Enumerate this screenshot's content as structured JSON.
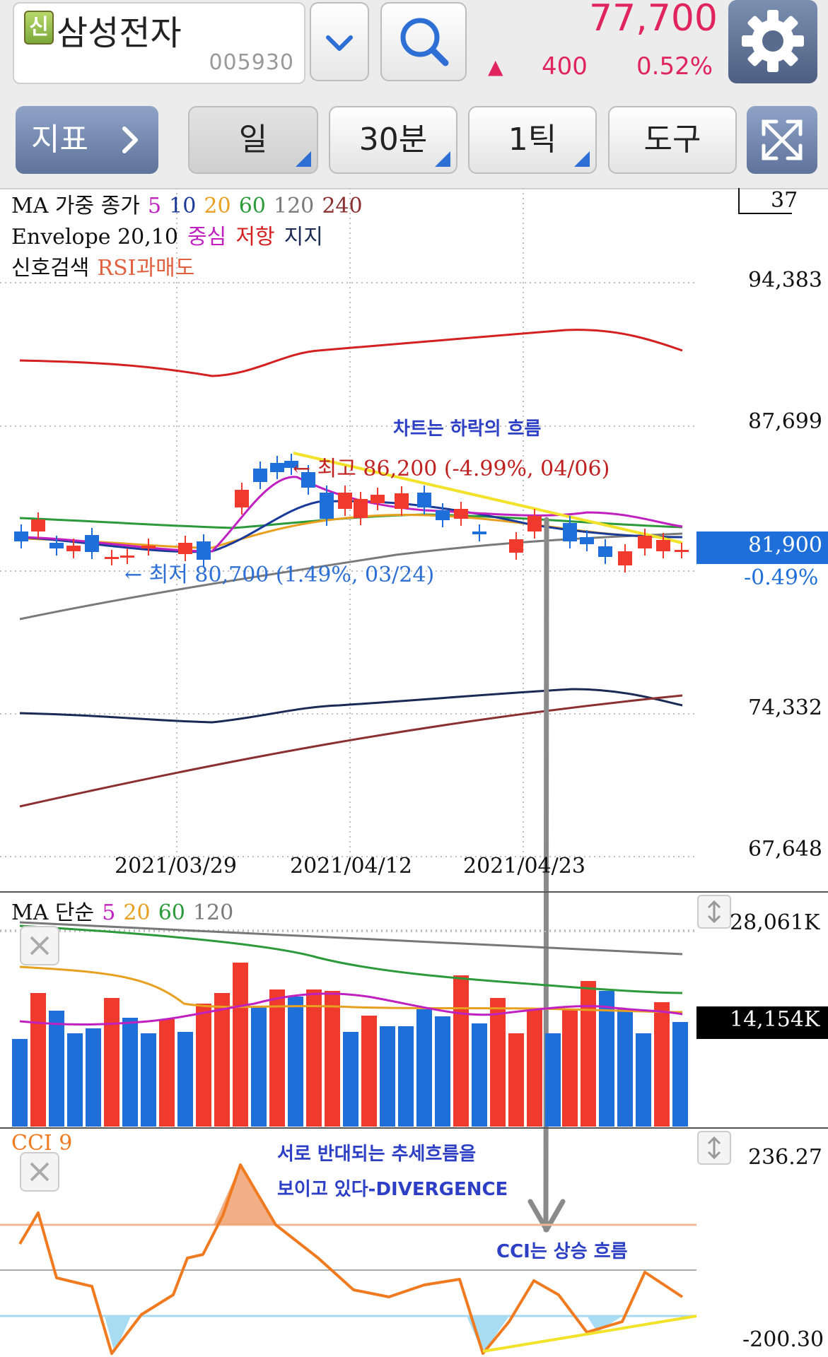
{
  "header": {
    "badge": "신",
    "stock_name": "삼성전자",
    "stock_code": "005930",
    "price": "77,700",
    "change_arrow": "▲",
    "change": "400",
    "change_pct": "0.52%",
    "price_color": "#e0245e"
  },
  "toolbar": {
    "indicator_label": "지표",
    "period_day": "일",
    "period_30m": "30분",
    "period_tick": "1틱",
    "tools": "도구"
  },
  "legend": {
    "ma_title": "MA 가중 종가",
    "ma_periods": [
      "5",
      "10",
      "20",
      "60",
      "120",
      "240"
    ],
    "envelope_title": "Envelope 20,10",
    "env_center": "중심",
    "env_resist": "저항",
    "env_support": "지지",
    "signal_title": "신호검색",
    "signal_rsi": "RSI과매도",
    "box_value": "37"
  },
  "price_axis": {
    "labels": [
      "94,383",
      "87,699",
      "74,332",
      "67,648"
    ],
    "current": "81,900",
    "current_pct": "-0.49%"
  },
  "annotations": {
    "trend_note": "차트는 하락의 흐름",
    "high_label": "← 최고 86,200 (-4.99%, 04/06)",
    "low_label": "← 최저 80,700 (1.49%, 03/24)",
    "divergence_1": "서로 반대되는 추세흐름을",
    "divergence_2": "보이고 있다-DIVERGENCE",
    "cci_note": "CCI는 상승 흐름"
  },
  "dates": [
    "2021/03/29",
    "2021/04/12",
    "2021/04/23"
  ],
  "volume": {
    "title": "MA 단순",
    "periods": [
      "5",
      "20",
      "60",
      "120"
    ],
    "max": "28,061K",
    "current": "14,154K"
  },
  "cci": {
    "title": "CCI 9",
    "max": "236.27",
    "min": "-200.30"
  },
  "colors": {
    "up": "#f03a2e",
    "down": "#1e6fd9",
    "accent_blue": "#2d6fd4"
  }
}
